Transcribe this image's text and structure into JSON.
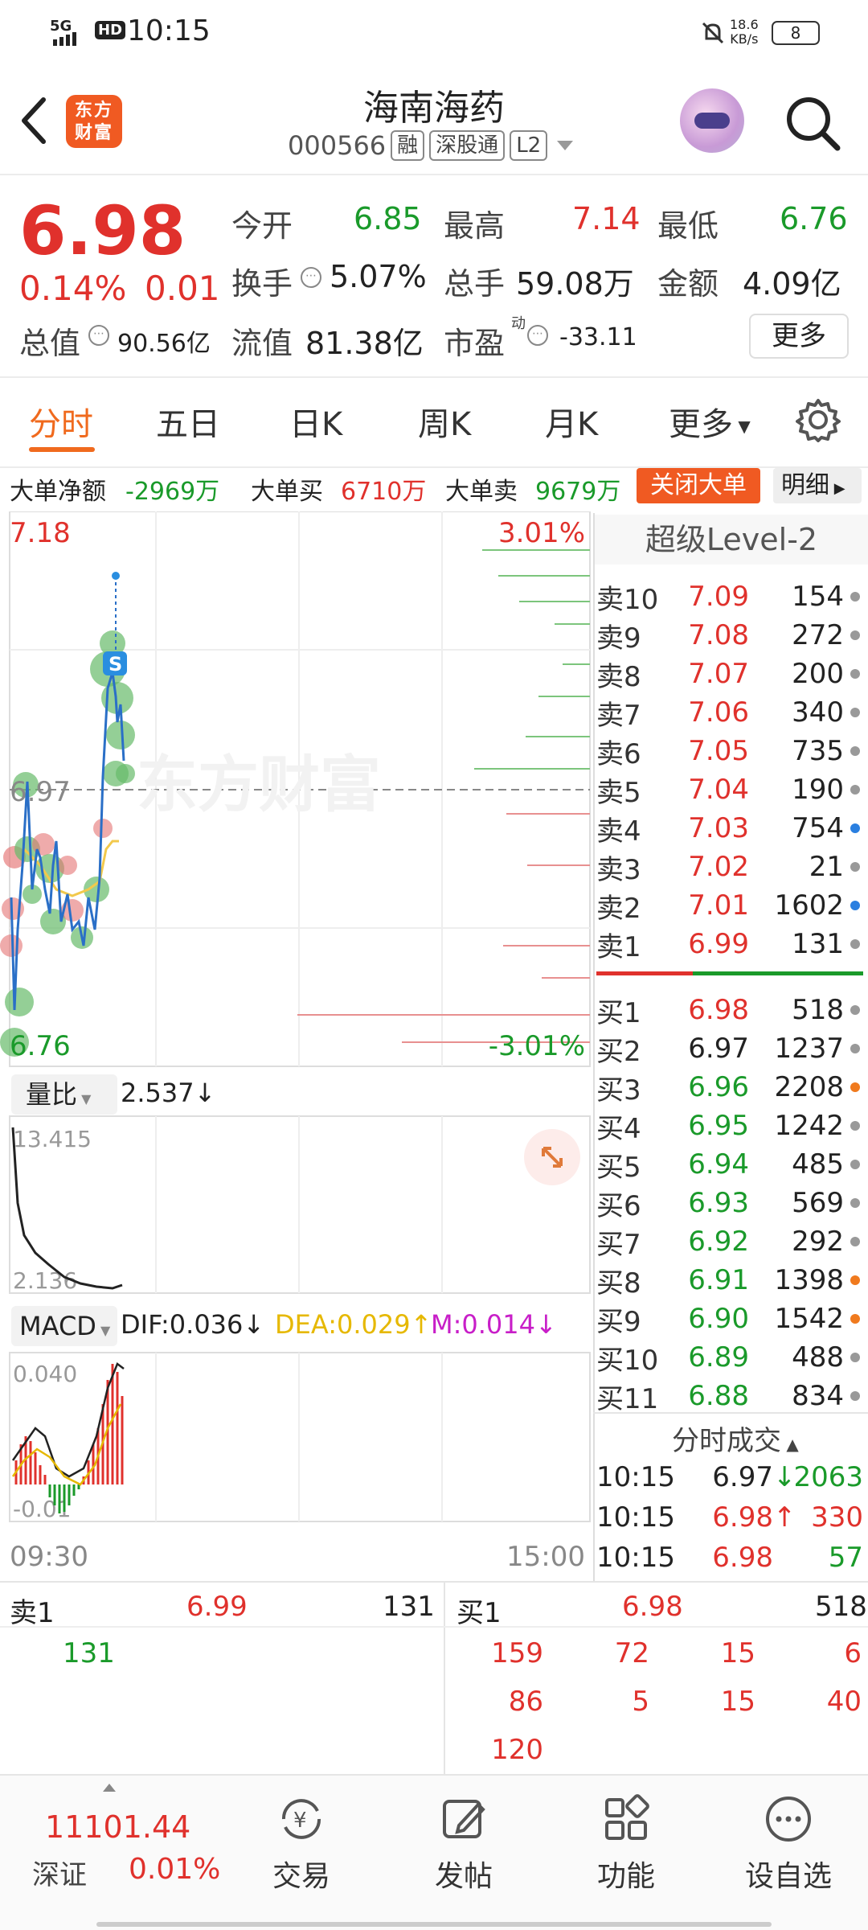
{
  "status_bar": {
    "time": "10:15",
    "network": "5G",
    "hd": "HD",
    "speed_top": "18.6",
    "speed_unit": "KB/s",
    "battery": "8"
  },
  "header": {
    "title": "海南海药",
    "code": "000566",
    "tags": [
      "融",
      "深股通",
      "L2"
    ],
    "brand": "东方财富"
  },
  "quote": {
    "price": "6.98",
    "pct": "0.14%",
    "change": "0.01",
    "open_label": "今开",
    "open": "6.85",
    "high_label": "最高",
    "high": "7.14",
    "low_label": "最低",
    "low": "6.76",
    "turnover_label": "换手",
    "turnover": "5.07%",
    "volume_label": "总手",
    "volume": "59.08万",
    "amount_label": "金额",
    "amount": "4.09亿",
    "mktcap_label": "总值",
    "mktcap": "90.56亿",
    "float_label": "流值",
    "float_cap": "81.38亿",
    "pe_label": "市盈",
    "pe_sup": "动",
    "pe": "-33.11",
    "more_button": "更多"
  },
  "tabs": [
    "分时",
    "五日",
    "日K",
    "周K",
    "月K",
    "更多"
  ],
  "big_order": {
    "net_label": "大单净额",
    "net": "-2969万",
    "buy_label": "大单买",
    "buy": "6710万",
    "sell_label": "大单卖",
    "sell": "9679万",
    "close_button": "关闭大单",
    "detail_button": "明细"
  },
  "chart": {
    "top_price": "7.18",
    "top_pct": "3.01%",
    "mid_price": "6.97",
    "bottom_price": "6.76",
    "bottom_pct": "-3.01%",
    "s_marker": "S",
    "watermark": "东方财富",
    "vol_ratio_label": "量比",
    "vol_ratio": "2.537↓",
    "vr_top": "13.415",
    "vr_bottom": "2.136",
    "macd_label": "MACD",
    "dif": "DIF:0.036↓",
    "dea": "DEA:0.029↑",
    "m": "M:0.014↓",
    "macd_top": "0.040",
    "macd_bottom": "-0.01",
    "time_start": "09:30",
    "time_end": "15:00"
  },
  "level2": {
    "title": "超级Level-2",
    "sells": [
      {
        "label": "卖10",
        "price": "7.09",
        "vol": "154"
      },
      {
        "label": "卖9",
        "price": "7.08",
        "vol": "272"
      },
      {
        "label": "卖8",
        "price": "7.07",
        "vol": "200"
      },
      {
        "label": "卖7",
        "price": "7.06",
        "vol": "340"
      },
      {
        "label": "卖6",
        "price": "7.05",
        "vol": "735"
      },
      {
        "label": "卖5",
        "price": "7.04",
        "vol": "190"
      },
      {
        "label": "卖4",
        "price": "7.03",
        "vol": "754"
      },
      {
        "label": "卖3",
        "price": "7.02",
        "vol": "21"
      },
      {
        "label": "卖2",
        "price": "7.01",
        "vol": "1602"
      },
      {
        "label": "卖1",
        "price": "6.99",
        "vol": "131"
      }
    ],
    "buys": [
      {
        "label": "买1",
        "price": "6.98",
        "vol": "518"
      },
      {
        "label": "买2",
        "price": "6.97",
        "vol": "1237"
      },
      {
        "label": "买3",
        "price": "6.96",
        "vol": "2208"
      },
      {
        "label": "买4",
        "price": "6.95",
        "vol": "1242"
      },
      {
        "label": "买5",
        "price": "6.94",
        "vol": "485"
      },
      {
        "label": "买6",
        "price": "6.93",
        "vol": "569"
      },
      {
        "label": "买7",
        "price": "6.92",
        "vol": "292"
      },
      {
        "label": "买8",
        "price": "6.91",
        "vol": "1398"
      },
      {
        "label": "买9",
        "price": "6.90",
        "vol": "1542"
      },
      {
        "label": "买10",
        "price": "6.89",
        "vol": "488"
      },
      {
        "label": "买11",
        "price": "6.88",
        "vol": "834"
      }
    ],
    "trades_title": "分时成交",
    "trades": [
      {
        "time": "10:15",
        "price": "6.97",
        "arrow": "↓",
        "vol": "2063"
      },
      {
        "time": "10:15",
        "price": "6.98",
        "arrow": "↑",
        "vol": "330"
      },
      {
        "time": "10:15",
        "price": "6.98",
        "arrow": "",
        "vol": "57"
      }
    ]
  },
  "queue": {
    "sell_label": "卖1",
    "sell_price": "6.99",
    "sell_vol": "131",
    "buy_label": "买1",
    "buy_price": "6.98",
    "buy_vol": "518",
    "sell_orders": [
      "131"
    ],
    "buy_orders": [
      "159",
      "72",
      "15",
      "6",
      "86",
      "5",
      "15",
      "40",
      "120"
    ]
  },
  "bottom_nav": {
    "index_value": "11101.44",
    "index_name": "深证",
    "index_pct": "0.01%",
    "items": [
      "交易",
      "发帖",
      "功能",
      "设自选"
    ]
  }
}
